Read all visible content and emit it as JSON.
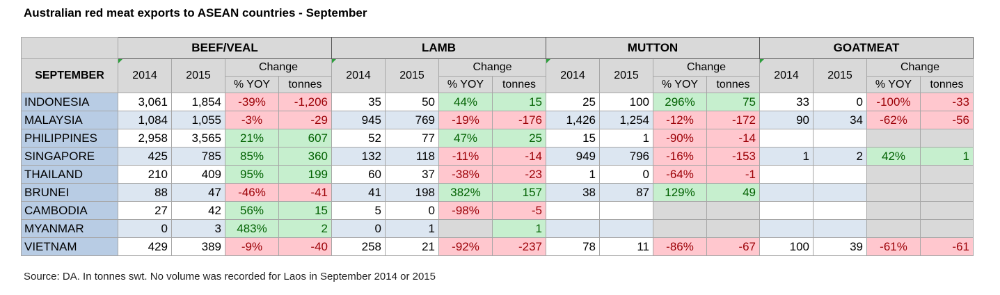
{
  "title": "Australian red meat exports to ASEAN countries - September",
  "source": "Source: DA. In tonnes swt. No volume was recorded for Laos in September 2014 or 2015",
  "header": {
    "corner": "SEPTEMBER",
    "groups": [
      "BEEF/VEAL",
      "LAMB",
      "MUTTON",
      "GOATMEAT"
    ],
    "year_a": "2014",
    "year_b": "2015",
    "change": "Change",
    "yoy": "% YOY",
    "tonnes": "tonnes"
  },
  "colors": {
    "positive_fill": "#c6efce",
    "negative_fill": "#ffc7ce",
    "country_fill": "#b8cce4",
    "alt_row_fill": "#dce6f1",
    "header_fill": "#d9d9d9"
  },
  "rows": [
    {
      "country": "INDONESIA",
      "v": [
        [
          "3,061",
          "1,854",
          "-39%",
          "-1,206"
        ],
        [
          "35",
          "50",
          "44%",
          "15"
        ],
        [
          "25",
          "100",
          "296%",
          "75"
        ],
        [
          "33",
          "0",
          "-100%",
          "-33"
        ]
      ]
    },
    {
      "country": "MALAYSIA",
      "v": [
        [
          "1,084",
          "1,055",
          "-3%",
          "-29"
        ],
        [
          "945",
          "769",
          "-19%",
          "-176"
        ],
        [
          "1,426",
          "1,254",
          "-12%",
          "-172"
        ],
        [
          "90",
          "34",
          "-62%",
          "-56"
        ]
      ]
    },
    {
      "country": "PHILIPPINES",
      "v": [
        [
          "2,958",
          "3,565",
          "21%",
          "607"
        ],
        [
          "52",
          "77",
          "47%",
          "25"
        ],
        [
          "15",
          "1",
          "-90%",
          "-14"
        ],
        [
          "",
          "",
          "",
          ""
        ]
      ]
    },
    {
      "country": "SINGAPORE",
      "v": [
        [
          "425",
          "785",
          "85%",
          "360"
        ],
        [
          "132",
          "118",
          "-11%",
          "-14"
        ],
        [
          "949",
          "796",
          "-16%",
          "-153"
        ],
        [
          "1",
          "2",
          "42%",
          "1"
        ]
      ]
    },
    {
      "country": "THAILAND",
      "v": [
        [
          "210",
          "409",
          "95%",
          "199"
        ],
        [
          "60",
          "37",
          "-38%",
          "-23"
        ],
        [
          "1",
          "0",
          "-64%",
          "-1"
        ],
        [
          "",
          "",
          "",
          ""
        ]
      ]
    },
    {
      "country": "BRUNEI",
      "v": [
        [
          "88",
          "47",
          "-46%",
          "-41"
        ],
        [
          "41",
          "198",
          "382%",
          "157"
        ],
        [
          "38",
          "87",
          "129%",
          "49"
        ],
        [
          "",
          "",
          "",
          ""
        ]
      ]
    },
    {
      "country": "CAMBODIA",
      "v": [
        [
          "27",
          "42",
          "56%",
          "15"
        ],
        [
          "5",
          "0",
          "-98%",
          "-5"
        ],
        [
          "",
          "",
          "",
          ""
        ],
        [
          "",
          "",
          "",
          ""
        ]
      ]
    },
    {
      "country": "MYANMAR",
      "v": [
        [
          "0",
          "3",
          "483%",
          "2"
        ],
        [
          "0",
          "1",
          "",
          "1"
        ],
        [
          "",
          "",
          "",
          ""
        ],
        [
          "",
          "",
          "",
          ""
        ]
      ]
    },
    {
      "country": "VIETNAM",
      "v": [
        [
          "429",
          "389",
          "-9%",
          "-40"
        ],
        [
          "258",
          "21",
          "-92%",
          "-237"
        ],
        [
          "78",
          "11",
          "-86%",
          "-67"
        ],
        [
          "100",
          "39",
          "-61%",
          "-61"
        ]
      ]
    }
  ]
}
